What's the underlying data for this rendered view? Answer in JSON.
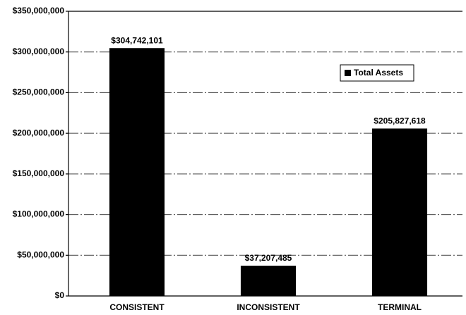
{
  "chart_data": {
    "type": "bar",
    "categories": [
      "CONSISTENT",
      "INCONSISTENT",
      "TERMINAL"
    ],
    "series": [
      {
        "name": "Total Assets",
        "color": "#000000",
        "values": [
          304742101,
          37207485,
          205827618
        ],
        "value_labels": [
          "$304,742,101",
          "$37,207,485",
          "$205,827,618"
        ]
      }
    ],
    "ylim": [
      0,
      350000000
    ],
    "yticks": [
      {
        "value": 0,
        "label": "$0"
      },
      {
        "value": 50000000,
        "label": "$50,000,000"
      },
      {
        "value": 100000000,
        "label": "$100,000,000"
      },
      {
        "value": 150000000,
        "label": "$150,000,000"
      },
      {
        "value": 200000000,
        "label": "$200,000,000"
      },
      {
        "value": 250000000,
        "label": "$250,000,000"
      },
      {
        "value": 300000000,
        "label": "$300,000,000"
      },
      {
        "value": 350000000,
        "label": "$350,000,000"
      }
    ],
    "grid": true,
    "legend": "upper right"
  }
}
